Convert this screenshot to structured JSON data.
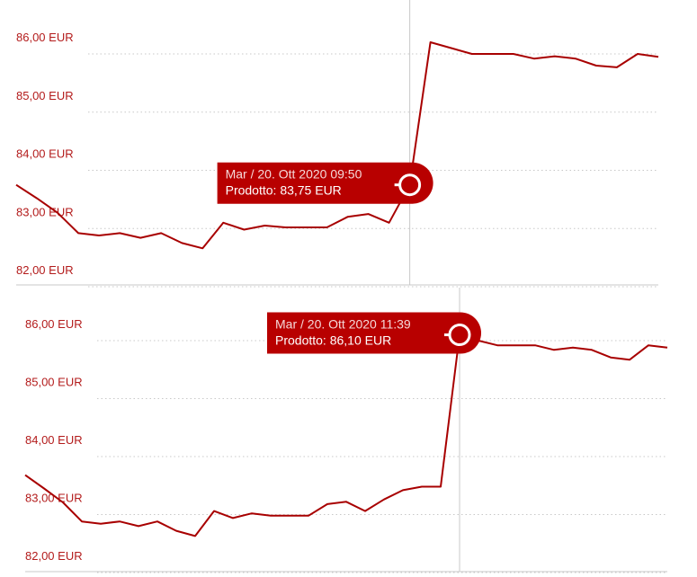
{
  "theme": {
    "line_color": "#a80000",
    "tick_color": "#b31b1b",
    "grid_color": "#c8c8c8",
    "crosshair_color": "#c8c8c8",
    "tooltip_bg": "#b80000",
    "tooltip_text_color": "#ffffff"
  },
  "chart_data": [
    {
      "type": "line",
      "title": "",
      "xlabel": "",
      "ylabel": "",
      "ylim": [
        82,
        86
      ],
      "y_ticks": [
        "86,00 EUR",
        "85,00 EUR",
        "84,00 EUR",
        "83,00 EUR",
        "82,00 EUR"
      ],
      "grid": "horizontal dotted",
      "legend": "none",
      "series": [
        {
          "values": [
            83.75,
            83.52,
            83.27,
            82.92,
            82.88,
            82.92,
            82.84,
            82.92,
            82.75,
            82.66,
            83.1,
            82.98,
            83.05,
            83.02,
            83.02,
            83.02,
            83.2,
            83.25,
            83.1,
            83.75,
            86.2,
            86.1,
            86.0,
            86.0,
            86.0,
            85.92,
            85.96,
            85.92,
            85.8,
            85.77,
            86.0,
            85.95
          ]
        }
      ],
      "highlight": {
        "index": 19,
        "date_text": "Mar / 20. Ott 2020 09:50",
        "value_text": "Prodotto: 83,75 EUR"
      }
    },
    {
      "type": "line",
      "title": "",
      "xlabel": "",
      "ylabel": "",
      "ylim": [
        82,
        86
      ],
      "y_ticks": [
        "86,00 EUR",
        "85,00 EUR",
        "84,00 EUR",
        "83,00 EUR",
        "82,00 EUR"
      ],
      "grid": "horizontal dotted",
      "legend": "none",
      "series": [
        {
          "values": [
            83.68,
            83.45,
            83.21,
            82.88,
            82.84,
            82.88,
            82.8,
            82.88,
            82.72,
            82.63,
            83.06,
            82.94,
            83.02,
            82.98,
            82.98,
            82.98,
            83.18,
            83.22,
            83.06,
            83.26,
            83.42,
            83.48,
            83.48,
            86.1,
            86.0,
            85.92,
            85.92,
            85.92,
            85.84,
            85.88,
            85.84,
            85.71,
            85.67,
            85.92,
            85.88
          ]
        }
      ],
      "highlight": {
        "index": 23,
        "date_text": "Mar / 20. Ott 2020 11:39",
        "value_text": "Prodotto: 86,10 EUR"
      }
    }
  ]
}
